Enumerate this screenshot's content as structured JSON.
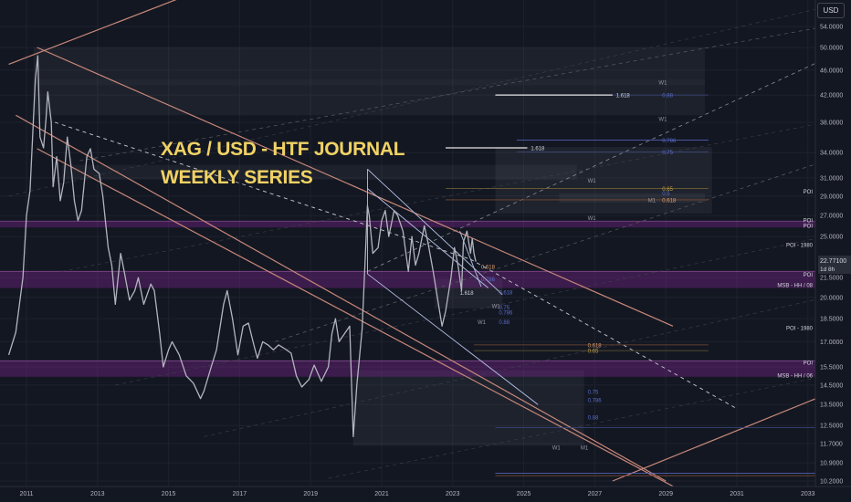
{
  "chart_data": {
    "type": "line",
    "title": "XAG / USD - HTF JOURNAL",
    "subtitle": "WEEKLY SERIES",
    "currency_button": "USD",
    "grid": true,
    "x_axis": {
      "ticks": [
        "2011",
        "2013",
        "2015",
        "2017",
        "2019",
        "2021",
        "2023",
        "2025",
        "2027",
        "2029",
        "2031",
        "2033"
      ],
      "range": [
        2010.5,
        2033.3
      ]
    },
    "y_axis": {
      "scale": "log",
      "range": [
        10.05,
        58.0
      ],
      "ticks": [
        "54.0000",
        "50.0000",
        "46.0000",
        "42.0000",
        "38.0000",
        "34.0000",
        "31.0000",
        "29.0000",
        "27.0000",
        "25.0000",
        "21.5000",
        "20.0000",
        "18.5000",
        "17.0000",
        "15.5000",
        "14.5000",
        "13.5000",
        "12.5000",
        "11.7000",
        "10.9000",
        "10.2000"
      ]
    },
    "price_label": {
      "value": "22.77100",
      "sub": "1d 8h",
      "y": 22.771,
      "color": "#9598a1"
    },
    "series": [
      {
        "color": "#b2b5be",
        "points": [
          [
            2010.5,
            16.2
          ],
          [
            2010.7,
            17.6
          ],
          [
            2010.9,
            21.5
          ],
          [
            2011.0,
            27.0
          ],
          [
            2011.1,
            29.6
          ],
          [
            2011.15,
            33.8
          ],
          [
            2011.25,
            44.5
          ],
          [
            2011.32,
            48.5
          ],
          [
            2011.38,
            36.0
          ],
          [
            2011.48,
            34.6
          ],
          [
            2011.55,
            38.5
          ],
          [
            2011.6,
            42.5
          ],
          [
            2011.7,
            38.0
          ],
          [
            2011.75,
            30.0
          ],
          [
            2011.85,
            33.5
          ],
          [
            2011.95,
            28.5
          ],
          [
            2012.05,
            30.5
          ],
          [
            2012.15,
            36.0
          ],
          [
            2012.25,
            32.5
          ],
          [
            2012.35,
            28.5
          ],
          [
            2012.45,
            26.5
          ],
          [
            2012.55,
            27.5
          ],
          [
            2012.7,
            33.5
          ],
          [
            2012.8,
            34.5
          ],
          [
            2012.9,
            32.0
          ],
          [
            2013.05,
            31.5
          ],
          [
            2013.15,
            29.0
          ],
          [
            2013.3,
            24.0
          ],
          [
            2013.4,
            22.5
          ],
          [
            2013.5,
            19.5
          ],
          [
            2013.65,
            23.5
          ],
          [
            2013.75,
            22.0
          ],
          [
            2013.9,
            19.8
          ],
          [
            2014.05,
            20.5
          ],
          [
            2014.15,
            21.5
          ],
          [
            2014.3,
            19.5
          ],
          [
            2014.5,
            21.0
          ],
          [
            2014.6,
            20.5
          ],
          [
            2014.75,
            17.5
          ],
          [
            2014.85,
            15.5
          ],
          [
            2015.0,
            16.5
          ],
          [
            2015.1,
            17.0
          ],
          [
            2015.3,
            16.2
          ],
          [
            2015.5,
            15.0
          ],
          [
            2015.7,
            14.6
          ],
          [
            2015.9,
            13.8
          ],
          [
            2016.0,
            14.2
          ],
          [
            2016.2,
            15.5
          ],
          [
            2016.35,
            16.5
          ],
          [
            2016.55,
            19.5
          ],
          [
            2016.65,
            20.5
          ],
          [
            2016.8,
            18.5
          ],
          [
            2016.95,
            16.2
          ],
          [
            2017.1,
            18.0
          ],
          [
            2017.25,
            18.2
          ],
          [
            2017.4,
            16.8
          ],
          [
            2017.5,
            16.0
          ],
          [
            2017.65,
            17.0
          ],
          [
            2017.8,
            16.8
          ],
          [
            2017.95,
            16.5
          ],
          [
            2018.1,
            16.8
          ],
          [
            2018.25,
            16.6
          ],
          [
            2018.45,
            16.3
          ],
          [
            2018.6,
            15.0
          ],
          [
            2018.75,
            14.4
          ],
          [
            2018.95,
            14.8
          ],
          [
            2019.1,
            15.6
          ],
          [
            2019.3,
            14.7
          ],
          [
            2019.5,
            15.5
          ],
          [
            2019.6,
            17.5
          ],
          [
            2019.7,
            18.5
          ],
          [
            2019.8,
            17.0
          ],
          [
            2019.95,
            17.5
          ],
          [
            2020.1,
            18.0
          ],
          [
            2020.2,
            12.0
          ],
          [
            2020.3,
            14.5
          ],
          [
            2020.45,
            17.8
          ],
          [
            2020.55,
            24.0
          ],
          [
            2020.6,
            28.0
          ],
          [
            2020.65,
            27.0
          ],
          [
            2020.75,
            23.5
          ],
          [
            2020.9,
            24.0
          ],
          [
            2021.0,
            26.5
          ],
          [
            2021.1,
            27.5
          ],
          [
            2021.2,
            25.0
          ],
          [
            2021.35,
            27.5
          ],
          [
            2021.45,
            27.0
          ],
          [
            2021.6,
            25.5
          ],
          [
            2021.75,
            22.0
          ],
          [
            2021.85,
            25.0
          ],
          [
            2021.95,
            22.5
          ],
          [
            2022.05,
            23.5
          ],
          [
            2022.2,
            26.0
          ],
          [
            2022.3,
            24.5
          ],
          [
            2022.45,
            22.0
          ],
          [
            2022.6,
            19.5
          ],
          [
            2022.7,
            18.0
          ],
          [
            2022.8,
            19.0
          ],
          [
            2022.95,
            21.5
          ],
          [
            2023.05,
            24.0
          ],
          [
            2023.15,
            22.5
          ],
          [
            2023.25,
            20.5
          ],
          [
            2023.3,
            24.5
          ],
          [
            2023.4,
            25.5
          ],
          [
            2023.5,
            23.5
          ],
          [
            2023.55,
            24.8
          ],
          [
            2023.6,
            23.5
          ],
          [
            2023.65,
            22.8
          ]
        ]
      }
    ],
    "fib_labels": [
      {
        "text": "1.618",
        "x": 2027.6,
        "y": 42.0,
        "color": "#d1d4dc",
        "line": [
          2024.2,
          2027.5
        ]
      },
      {
        "text": "0.88",
        "x": 2028.9,
        "y": 42.0,
        "color": "#5b6cc9"
      },
      {
        "text": "W1",
        "x": 2028.8,
        "y": 44.0,
        "color": "#9598a1"
      },
      {
        "text": "W1",
        "x": 2028.8,
        "y": 38.5,
        "color": "#9598a1"
      },
      {
        "text": "0.786",
        "x": 2028.9,
        "y": 35.6,
        "color": "#5b6cc9"
      },
      {
        "text": "1.618",
        "x": 2025.2,
        "y": 34.6,
        "color": "#d1d4dc",
        "line": [
          2022.8,
          2025.1
        ]
      },
      {
        "text": "0.75",
        "x": 2028.9,
        "y": 34.1,
        "color": "#5b6cc9"
      },
      {
        "text": "W1",
        "x": 2026.8,
        "y": 30.7,
        "color": "#9598a1"
      },
      {
        "text": "0.65",
        "x": 2028.9,
        "y": 29.8,
        "color": "#c0a040"
      },
      {
        "text": "0.5",
        "x": 2028.9,
        "y": 29.3,
        "color": "#5b6cc9"
      },
      {
        "text": "M1",
        "x": 2028.5,
        "y": 28.6,
        "color": "#9598a1"
      },
      {
        "text": "0.618",
        "x": 2028.9,
        "y": 28.6,
        "color": "#e0a070"
      },
      {
        "text": "W1",
        "x": 2026.8,
        "y": 26.8,
        "color": "#9598a1"
      },
      {
        "text": "0.618",
        "x": 2023.8,
        "y": 22.4,
        "color": "#e0a070"
      },
      {
        "text": "0.786",
        "x": 2023.8,
        "y": 21.4,
        "color": "#5b6cc9"
      },
      {
        "text": "1.618",
        "x": 2023.2,
        "y": 20.35,
        "color": "#d1d4dc"
      },
      {
        "text": "0.618",
        "x": 2024.3,
        "y": 20.4,
        "color": "#5b6cc9"
      },
      {
        "text": "W1",
        "x": 2024.1,
        "y": 19.4,
        "color": "#9598a1"
      },
      {
        "text": "0.75",
        "x": 2024.3,
        "y": 19.3,
        "color": "#5b6cc9"
      },
      {
        "text": "0.786",
        "x": 2024.3,
        "y": 18.95,
        "color": "#5b6cc9"
      },
      {
        "text": "W1",
        "x": 2023.7,
        "y": 18.3,
        "color": "#9598a1"
      },
      {
        "text": "0.88",
        "x": 2024.3,
        "y": 18.3,
        "color": "#5b6cc9"
      },
      {
        "text": "0.618",
        "x": 2026.8,
        "y": 16.8,
        "color": "#e0a070"
      },
      {
        "text": "0.65",
        "x": 2026.8,
        "y": 16.45,
        "color": "#c0a040"
      },
      {
        "text": "0.75",
        "x": 2026.8,
        "y": 14.15,
        "color": "#5b6cc9"
      },
      {
        "text": "0.786",
        "x": 2026.8,
        "y": 13.75,
        "color": "#5b6cc9"
      },
      {
        "text": "0.88",
        "x": 2026.8,
        "y": 12.9,
        "color": "#5b6cc9"
      },
      {
        "text": "W1",
        "x": 2025.8,
        "y": 11.55,
        "color": "#9598a1"
      },
      {
        "text": "M1",
        "x": 2026.6,
        "y": 11.55,
        "color": "#9598a1"
      }
    ],
    "zone_labels": [
      {
        "text": "POI",
        "y": 29.5,
        "color": "#d1d4dc"
      },
      {
        "text": "POI",
        "y": 26.55,
        "color": "#d1d4dc"
      },
      {
        "text": "POI",
        "y": 26.05,
        "color": "#d1d4dc"
      },
      {
        "text": "POI - 1980",
        "y": 24.25,
        "color": "#d1d4dc"
      },
      {
        "text": "POI",
        "y": 21.75,
        "color": "#d1d4dc"
      },
      {
        "text": "MSB - HH / 08",
        "y": 20.95,
        "color": "#d1d4dc"
      },
      {
        "text": "POI - 1980",
        "y": 17.9,
        "color": "#d1d4dc"
      },
      {
        "text": "POI",
        "y": 15.75,
        "color": "#d1d4dc"
      },
      {
        "text": "MSB - HH / 06",
        "y": 15.05,
        "color": "#d1d4dc"
      }
    ]
  }
}
